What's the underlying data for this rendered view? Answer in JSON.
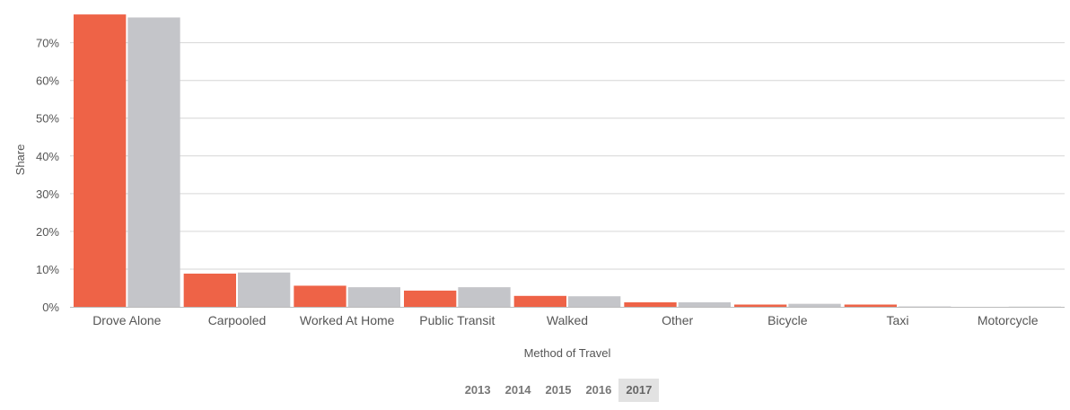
{
  "chart_data": {
    "type": "bar",
    "title": "",
    "xlabel": "Method of Travel",
    "ylabel": "Share",
    "categories": [
      "Drove Alone",
      "Carpooled",
      "Worked At Home",
      "Public Transit",
      "Walked",
      "Other",
      "Bicycle",
      "Taxi",
      "Motorcycle"
    ],
    "series": [
      {
        "color": "#ee6347",
        "values": [
          77.5,
          8.8,
          5.6,
          4.3,
          2.9,
          1.2,
          0.6,
          0.6,
          0.0
        ]
      },
      {
        "color": "#c4c5c9",
        "values": [
          76.7,
          9.1,
          5.2,
          5.2,
          2.8,
          1.2,
          0.8,
          0.1,
          0.05
        ]
      }
    ],
    "yticks": [
      "0%",
      "10%",
      "20%",
      "30%",
      "40%",
      "50%",
      "60%",
      "70%"
    ],
    "ylim": [
      0,
      78
    ],
    "grid": true
  },
  "year_selector": {
    "years": [
      "2013",
      "2014",
      "2015",
      "2016",
      "2017"
    ],
    "active": "2017"
  }
}
